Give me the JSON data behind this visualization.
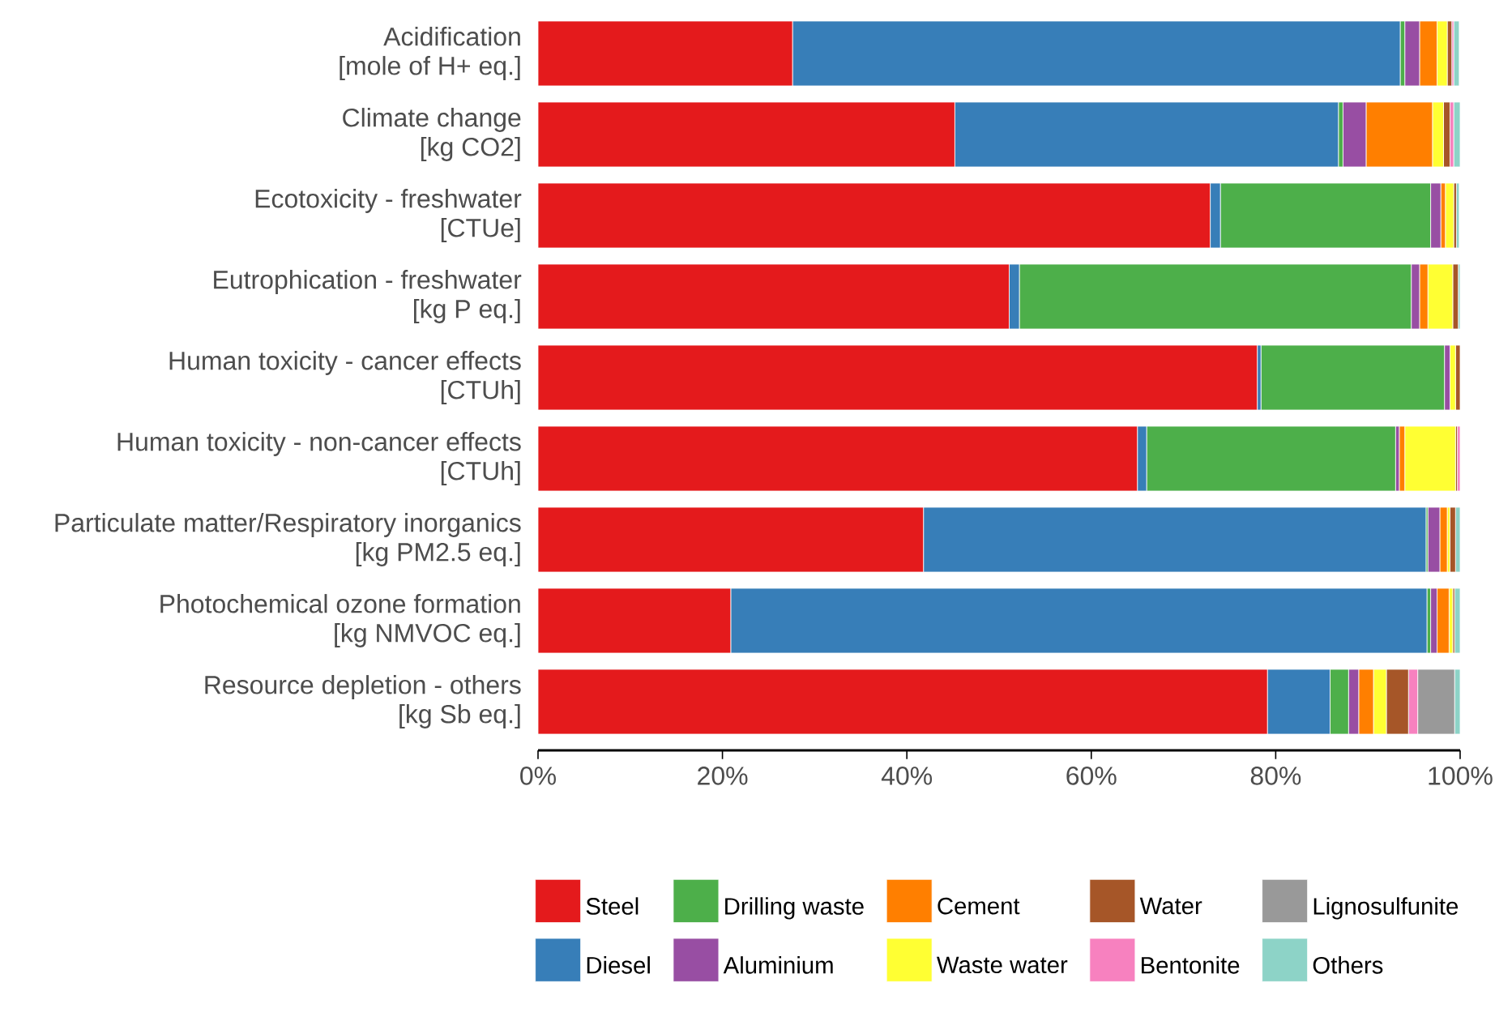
{
  "chart_data": {
    "type": "bar",
    "orientation": "horizontal",
    "stacked": true,
    "legend": "bottom",
    "categories": [
      "Acidification\n[mole of H+ eq.]",
      "Climate change\n[kg CO2]",
      "Ecotoxicity - freshwater\n[CTUe]",
      "Eutrophication - freshwater\n[kg P eq.]",
      "Human toxicity - cancer effects\n[CTUh]",
      "Human toxicity - non-cancer effects\n[CTUh]",
      "Particulate matter/Respiratory inorganics\n[kg PM2.5 eq.]",
      "Photochemical ozone formation\n[kg NMVOC eq.]",
      "Resource depletion - others\n[kg Sb eq.]"
    ],
    "xlim": [
      0,
      100
    ],
    "xticks": [
      {
        "value": 0,
        "label": "0%"
      },
      {
        "value": 20,
        "label": "20%"
      },
      {
        "value": 40,
        "label": "40%"
      },
      {
        "value": 60,
        "label": "60%"
      },
      {
        "value": 80,
        "label": "80%"
      },
      {
        "value": 100,
        "label": "100%"
      }
    ],
    "series": [
      {
        "name": "Steel",
        "color": "#e41a1c",
        "values": [
          27.6,
          45.2,
          72.9,
          51.1,
          78.0,
          65.0,
          41.8,
          20.9,
          79.1
        ]
      },
      {
        "name": "Diesel",
        "color": "#377eb8",
        "values": [
          65.9,
          41.6,
          1.1,
          1.1,
          0.4,
          1.0,
          54.5,
          75.5,
          6.8
        ]
      },
      {
        "name": "Drilling waste",
        "color": "#4daf4a",
        "values": [
          0.5,
          0.5,
          22.8,
          42.5,
          19.9,
          27.0,
          0.2,
          0.4,
          2.0
        ]
      },
      {
        "name": "Aluminium",
        "color": "#984ea3",
        "values": [
          1.6,
          2.5,
          1.1,
          0.9,
          0.6,
          0.4,
          1.3,
          0.7,
          1.1
        ]
      },
      {
        "name": "Cement",
        "color": "#ff7f00",
        "values": [
          1.9,
          7.2,
          0.5,
          0.9,
          0,
          0.6,
          0.8,
          1.3,
          1.6
        ]
      },
      {
        "name": "Waste water",
        "color": "#ffff33",
        "values": [
          1.1,
          1.2,
          0.9,
          2.7,
          0.6,
          5.5,
          0.3,
          0.4,
          1.4
        ]
      },
      {
        "name": "Water",
        "color": "#a65628",
        "values": [
          0.5,
          0.7,
          0.3,
          0.6,
          0.5,
          0.2,
          0.6,
          0.2,
          2.4
        ]
      },
      {
        "name": "Bentonite",
        "color": "#f781bf",
        "values": [
          0.2,
          0.4,
          null,
          0,
          0,
          0.3,
          0,
          0,
          1.0
        ]
      },
      {
        "name": "Lignosulfunite",
        "color": "#999999",
        "values": [
          null,
          0,
          0,
          0,
          0,
          0,
          0,
          0,
          4.0
        ]
      },
      {
        "name": "Others",
        "color": "#8dd3c7",
        "values": [
          0.6,
          0.7,
          0.3,
          0.2,
          0,
          0,
          0.5,
          0.6,
          0.6
        ]
      }
    ]
  }
}
